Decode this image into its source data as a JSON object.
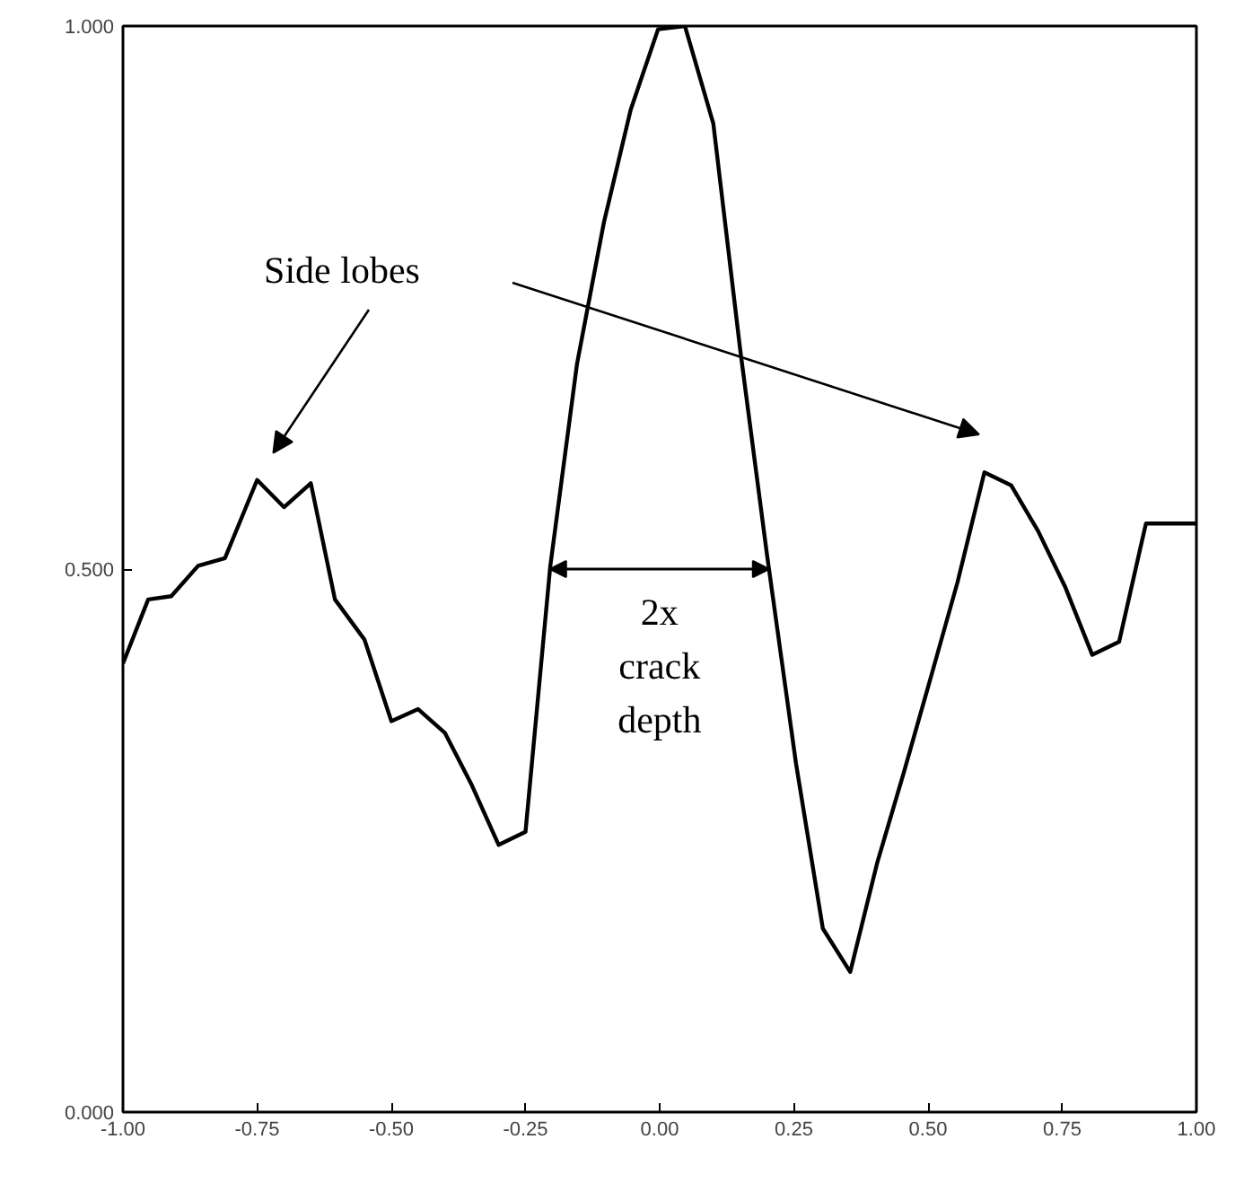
{
  "chart_data": {
    "type": "line",
    "x": [
      -1.0,
      -0.953,
      -0.91,
      -0.86,
      -0.81,
      -0.75,
      -0.7,
      -0.65,
      -0.605,
      -0.55,
      -0.5,
      -0.45,
      -0.4,
      -0.35,
      -0.3,
      -0.25,
      -0.204,
      -0.154,
      -0.104,
      -0.054,
      -0.003,
      0.047,
      0.1,
      0.15,
      0.2,
      0.254,
      0.304,
      0.355,
      0.405,
      0.455,
      0.505,
      0.555,
      0.605,
      0.655,
      0.705,
      0.756,
      0.806,
      0.856,
      0.906,
      0.956,
      1.0
    ],
    "series": [
      {
        "color": "#000000",
        "values": [
          0.413,
          0.472,
          0.475,
          0.503,
          0.51,
          0.582,
          0.557,
          0.579,
          0.472,
          0.435,
          0.36,
          0.371,
          0.349,
          0.301,
          0.246,
          0.258,
          0.502,
          0.689,
          0.819,
          0.923,
          0.997,
          1.0,
          0.91,
          0.702,
          0.513,
          0.321,
          0.169,
          0.129,
          0.229,
          0.313,
          0.4,
          0.488,
          0.589,
          0.577,
          0.535,
          0.483,
          0.421,
          0.433,
          0.542,
          0.542,
          0.542
        ]
      }
    ],
    "xlim": [
      -1.0,
      1.0
    ],
    "ylim": [
      0.0,
      1.0
    ],
    "xticks": [
      {
        "value": -1.0,
        "label": "-1.00"
      },
      {
        "value": -0.75,
        "label": "-0.75"
      },
      {
        "value": -0.5,
        "label": "-0.50"
      },
      {
        "value": -0.25,
        "label": "-0.25"
      },
      {
        "value": 0.0,
        "label": "0.00"
      },
      {
        "value": 0.25,
        "label": "0.25"
      },
      {
        "value": 0.5,
        "label": "0.50"
      },
      {
        "value": 0.75,
        "label": "0.75"
      },
      {
        "value": 1.0,
        "label": "1.00"
      }
    ],
    "yticks": [
      {
        "value": 0.0,
        "label": "0.000"
      },
      {
        "value": 0.5,
        "label": "0.500"
      },
      {
        "value": 1.0,
        "label": "1.000"
      }
    ],
    "annotations": [
      "Side lobes",
      "2x\ncrack\ndepth"
    ],
    "grid": false,
    "marker": "none",
    "line_style": "solid"
  }
}
